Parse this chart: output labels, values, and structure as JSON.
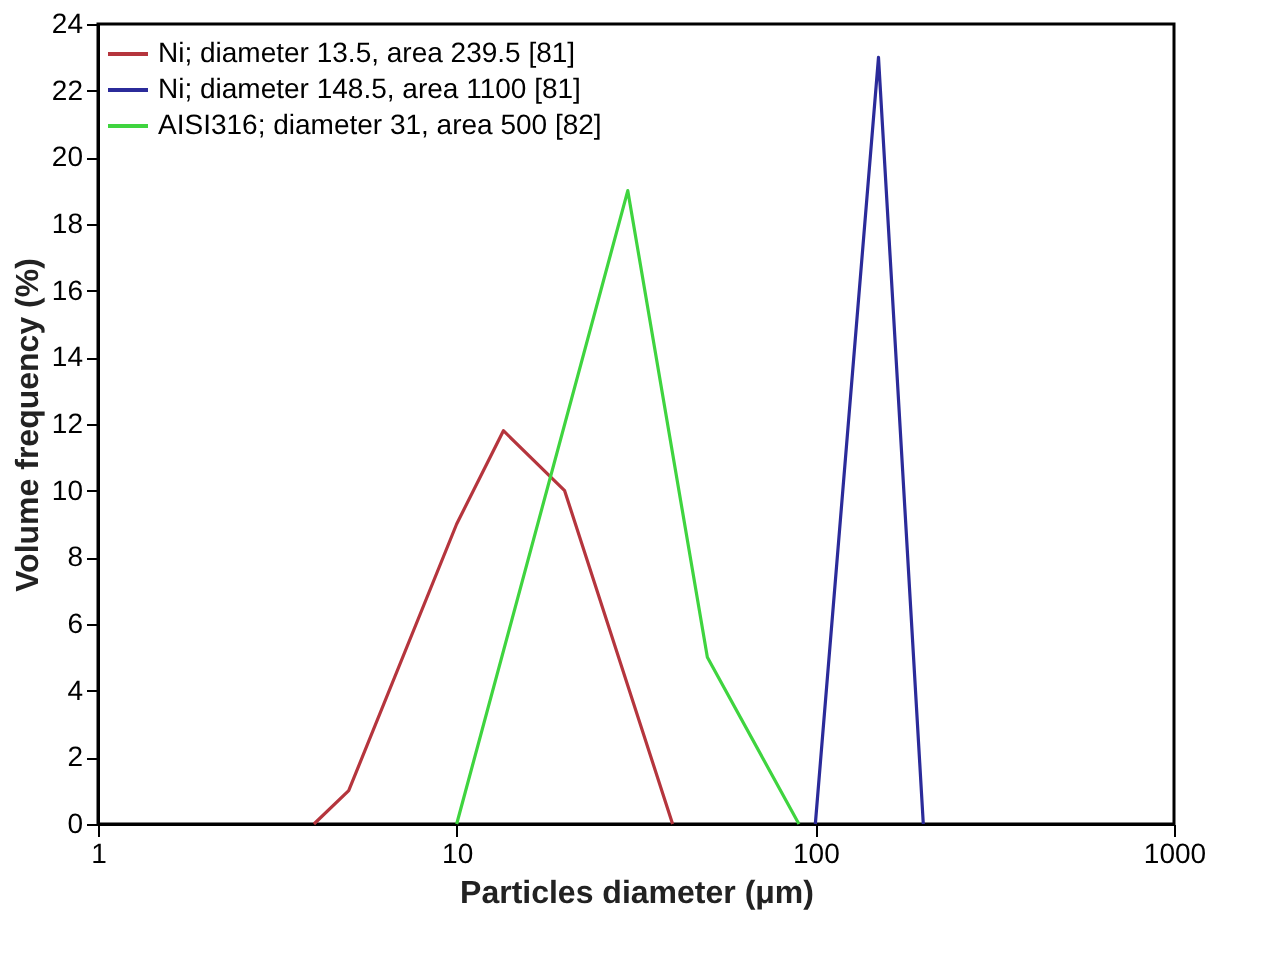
{
  "chart_data": {
    "type": "line",
    "xlabel": "Particles diameter (μm)",
    "ylabel": "Volume frequency (%)",
    "log": "x",
    "xlim": [
      1,
      1000
    ],
    "xticks": [
      1,
      10,
      100,
      1000
    ],
    "ylim": [
      0,
      24
    ],
    "yticks": [
      0,
      2,
      4,
      6,
      8,
      10,
      12,
      14,
      16,
      18,
      20,
      22,
      24
    ],
    "grid": false,
    "legend": "top left",
    "marker": "none",
    "line_style": "solid",
    "series": [
      {
        "name": "Ni; diameter 13.5, area 239.5 [81]",
        "color": "#b5353d",
        "x": [
          4,
          5,
          10,
          13.5,
          20,
          40
        ],
        "values": [
          0,
          1,
          9,
          11.8,
          10,
          0
        ]
      },
      {
        "name": "Ni; diameter 148.5, area 1100 [81]",
        "color": "#2b2b9a",
        "x": [
          100,
          150,
          200
        ],
        "values": [
          0,
          23,
          0
        ]
      },
      {
        "name": "AISI316; diameter 31, area 500 [82]",
        "color": "#3fd43f",
        "x": [
          10,
          30,
          50,
          90
        ],
        "values": [
          0,
          19,
          5,
          0
        ]
      }
    ]
  }
}
